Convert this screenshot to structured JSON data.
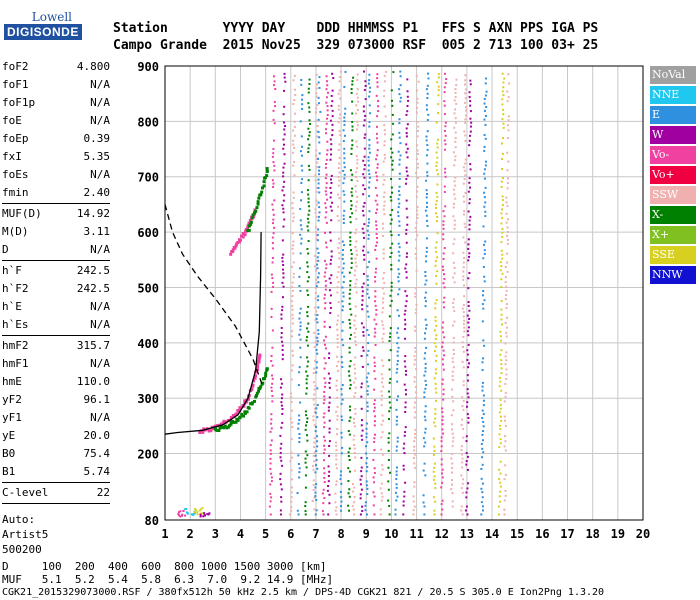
{
  "logo": {
    "line1": "Lowell",
    "line2": "DIGISONDE"
  },
  "header": {
    "row1": "Station       YYYY DAY    DDD HHMMSS P1   FFS S AXN PPS IGA PS",
    "row2": "Campo Grande  2015 Nov25  329 073000 RSF  005 2 713 100 03+ 25"
  },
  "params": {
    "g1": [
      {
        "k": "foF2",
        "v": "4.800"
      },
      {
        "k": "foF1",
        "v": "N/A"
      },
      {
        "k": "foF1p",
        "v": "N/A"
      },
      {
        "k": "foE",
        "v": "N/A"
      },
      {
        "k": "foEp",
        "v": "0.39"
      },
      {
        "k": "fxI",
        "v": "5.35"
      },
      {
        "k": "foEs",
        "v": "N/A"
      },
      {
        "k": "fmin",
        "v": "2.40"
      }
    ],
    "g2": [
      {
        "k": "MUF(D)",
        "v": "14.92"
      },
      {
        "k": "M(D)",
        "v": "3.11"
      },
      {
        "k": "D",
        "v": "N/A"
      }
    ],
    "g3": [
      {
        "k": "h`F",
        "v": "242.5"
      },
      {
        "k": "h`F2",
        "v": "242.5"
      },
      {
        "k": "h`E",
        "v": "N/A"
      },
      {
        "k": "h`Es",
        "v": "N/A"
      }
    ],
    "g4": [
      {
        "k": "hmF2",
        "v": "315.7"
      },
      {
        "k": "hmF1",
        "v": "N/A"
      },
      {
        "k": "hmE",
        "v": "110.0"
      },
      {
        "k": "yF2",
        "v": "96.1"
      },
      {
        "k": "yF1",
        "v": "N/A"
      },
      {
        "k": "yE",
        "v": "20.0"
      },
      {
        "k": "B0",
        "v": "75.4"
      },
      {
        "k": "B1",
        "v": "5.74"
      }
    ],
    "g5": [
      {
        "k": "C-level",
        "v": "22"
      }
    ],
    "auto": [
      "Auto:",
      "Artist5",
      "500200"
    ]
  },
  "legend": [
    {
      "label": "NoVal",
      "color": "#a0a0a0"
    },
    {
      "label": "NNE",
      "color": "#20c8f0"
    },
    {
      "label": "E",
      "color": "#3090e0"
    },
    {
      "label": "W",
      "color": "#a000a0"
    },
    {
      "label": "Vo-",
      "color": "#f040a0"
    },
    {
      "label": "Vo+",
      "color": "#f00040"
    },
    {
      "label": "SSW",
      "color": "#f0b0b0"
    },
    {
      "label": "X-",
      "color": "#008000"
    },
    {
      "label": "X+",
      "color": "#80c020"
    },
    {
      "label": "SSE",
      "color": "#d8d020"
    },
    {
      "label": "NNW",
      "color": "#1010d0"
    }
  ],
  "footer": {
    "d_row": "D     100  200  400  600  800 1000 1500 3000 [km]",
    "muf_row": "MUF   5.1  5.2  5.4  5.8  6.3  7.0  9.2 14.9 [MHz]",
    "info": "CGK21_2015329073000.RSF / 380fx512h 50 kHz 2.5 km / DPS-4D CGK21 821 / 20.5 S 305.0 E Ion2Png 1.3.20"
  },
  "chart_data": {
    "type": "scatter",
    "x_ticks": [
      "1",
      "2",
      "3",
      "4",
      "5",
      "6",
      "7",
      "8",
      "9",
      "10",
      "11",
      "12",
      "13",
      "14",
      "15",
      "16",
      "17",
      "18",
      "19",
      "20"
    ],
    "y_ticks": [
      "80",
      "200",
      "300",
      "400",
      "500",
      "600",
      "700",
      "800",
      "900"
    ],
    "xlim": [
      1,
      20
    ],
    "ylim": [
      80,
      900
    ],
    "grid": true,
    "traces": {
      "o_trace": {
        "color": "#f040a0",
        "x": [
          2.4,
          2.8,
          3.2,
          3.6,
          4.0,
          4.3,
          4.55,
          4.7,
          4.8
        ],
        "y": [
          240,
          244,
          252,
          262,
          280,
          300,
          330,
          360,
          380
        ]
      },
      "x_trace": {
        "color": "#008000",
        "x": [
          3.0,
          3.4,
          3.8,
          4.2,
          4.6,
          4.9,
          5.1
        ],
        "y": [
          242,
          248,
          258,
          275,
          300,
          330,
          360
        ]
      },
      "upper_o": {
        "color": "#f040a0",
        "x": [
          3.6,
          3.9,
          4.2,
          4.4,
          4.6
        ],
        "y": [
          560,
          580,
          600,
          620,
          640
        ]
      },
      "upper_x": {
        "color": "#008000",
        "x": [
          4.3,
          4.6,
          4.9,
          5.1
        ],
        "y": [
          600,
          640,
          680,
          720
        ]
      },
      "profile": {
        "color": "#000000",
        "x": [
          1.0,
          1.5,
          2.5,
          3.3,
          3.9,
          4.3,
          4.6,
          4.75,
          4.8,
          4.82
        ],
        "y": [
          235,
          238,
          242,
          252,
          270,
          300,
          350,
          420,
          520,
          600
        ]
      },
      "muf_curve": {
        "color": "#000000",
        "dashed": true,
        "x": [
          1.0,
          1.3,
          1.7,
          2.3,
          3.0,
          3.8,
          4.5,
          4.9
        ],
        "y": [
          650,
          600,
          560,
          520,
          480,
          430,
          370,
          320
        ]
      }
    },
    "columns": [
      {
        "x": 5.2,
        "color": "#f040a0"
      },
      {
        "x": 5.6,
        "color": "#a000a0"
      },
      {
        "x": 6.0,
        "color": "#f0b0b0"
      },
      {
        "x": 6.3,
        "color": "#3090e0"
      },
      {
        "x": 6.6,
        "color": "#008000"
      },
      {
        "x": 6.9,
        "color": "#f0b0b0"
      },
      {
        "x": 7.0,
        "color": "#3090e0"
      },
      {
        "x": 7.3,
        "color": "#f040a0"
      },
      {
        "x": 7.5,
        "color": "#a000a0"
      },
      {
        "x": 7.8,
        "color": "#f0b0b0"
      },
      {
        "x": 8.0,
        "color": "#3090e0"
      },
      {
        "x": 8.3,
        "color": "#008000"
      },
      {
        "x": 8.5,
        "color": "#f0b0b0"
      },
      {
        "x": 8.8,
        "color": "#a000a0"
      },
      {
        "x": 9.0,
        "color": "#3090e0"
      },
      {
        "x": 9.3,
        "color": "#f040a0"
      },
      {
        "x": 9.6,
        "color": "#f0b0b0"
      },
      {
        "x": 9.9,
        "color": "#008000"
      },
      {
        "x": 10.2,
        "color": "#3090e0"
      },
      {
        "x": 10.5,
        "color": "#a000a0"
      },
      {
        "x": 10.9,
        "color": "#f0b0b0"
      },
      {
        "x": 11.3,
        "color": "#3090e0"
      },
      {
        "x": 11.7,
        "color": "#d8d020"
      },
      {
        "x": 12.0,
        "color": "#f040a0"
      },
      {
        "x": 12.4,
        "color": "#f0b0b0"
      },
      {
        "x": 12.8,
        "color": "#f0b0b0"
      },
      {
        "x": 13.0,
        "color": "#a000a0"
      },
      {
        "x": 13.6,
        "color": "#3090e0"
      },
      {
        "x": 14.3,
        "color": "#d8d020"
      },
      {
        "x": 14.5,
        "color": "#f0b0b0"
      }
    ]
  }
}
